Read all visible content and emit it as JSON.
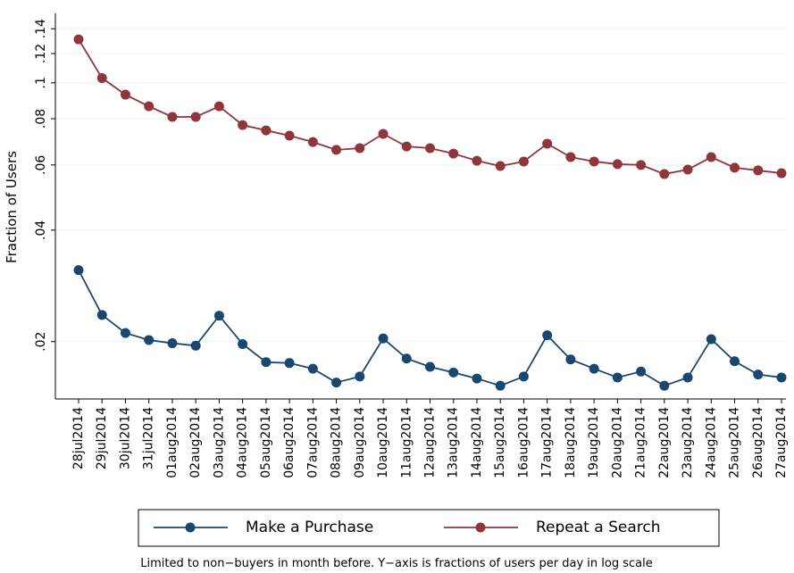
{
  "chart_data": {
    "type": "line",
    "y_label": "Fraction of Users",
    "note": "Limited to non−buyers in month before.  Y−axis is fractions of users per day in log scale",
    "y_scale": "log",
    "grid": true,
    "legend_position": "bottom",
    "categories": [
      "28jul2014",
      "29jul2014",
      "30jul2014",
      "31jul2014",
      "01aug2014",
      "02aug2014",
      "03aug2014",
      "04aug2014",
      "05aug2014",
      "06aug2014",
      "07aug2014",
      "08aug2014",
      "09aug2014",
      "10aug2014",
      "11aug2014",
      "12aug2014",
      "13aug2014",
      "14aug2014",
      "15aug2014",
      "16aug2014",
      "17aug2014",
      "18aug2014",
      "19aug2014",
      "20aug2014",
      "21aug2014",
      "22aug2014",
      "23aug2014",
      "24aug2014",
      "25aug2014",
      "26aug2014",
      "27aug2014"
    ],
    "series": [
      {
        "name": "Make a Purchase",
        "color": "#1a476f",
        "values": [
          0.0312,
          0.0236,
          0.0211,
          0.0202,
          0.0198,
          0.0195,
          0.0235,
          0.0197,
          0.0176,
          0.0175,
          0.0169,
          0.0155,
          0.0161,
          0.0204,
          0.018,
          0.0171,
          0.0165,
          0.0159,
          0.0152,
          0.0161,
          0.0208,
          0.0179,
          0.0169,
          0.016,
          0.0166,
          0.0152,
          0.016,
          0.0203,
          0.0177,
          0.0163,
          0.016
        ]
      },
      {
        "name": "Repeat a Search",
        "color": "#90353b",
        "values": [
          0.131,
          0.103,
          0.0929,
          0.0864,
          0.0809,
          0.0809,
          0.0864,
          0.0769,
          0.0744,
          0.072,
          0.0692,
          0.0659,
          0.0666,
          0.0728,
          0.0673,
          0.0666,
          0.0644,
          0.0616,
          0.0596,
          0.0613,
          0.0685,
          0.063,
          0.0613,
          0.0603,
          0.06,
          0.0567,
          0.0583,
          0.063,
          0.059,
          0.058,
          0.057
        ]
      }
    ],
    "ylim": [
      0.014,
      0.154
    ],
    "yticks": [
      {
        "value": 0.02,
        "label": ".02"
      },
      {
        "value": 0.04,
        "label": ".04"
      },
      {
        "value": 0.06,
        "label": ".06"
      },
      {
        "value": 0.08,
        "label": ".08"
      },
      {
        "value": 0.1,
        "label": ".1"
      },
      {
        "value": 0.12,
        "label": ".12"
      },
      {
        "value": 0.14,
        "label": ".14"
      }
    ]
  }
}
